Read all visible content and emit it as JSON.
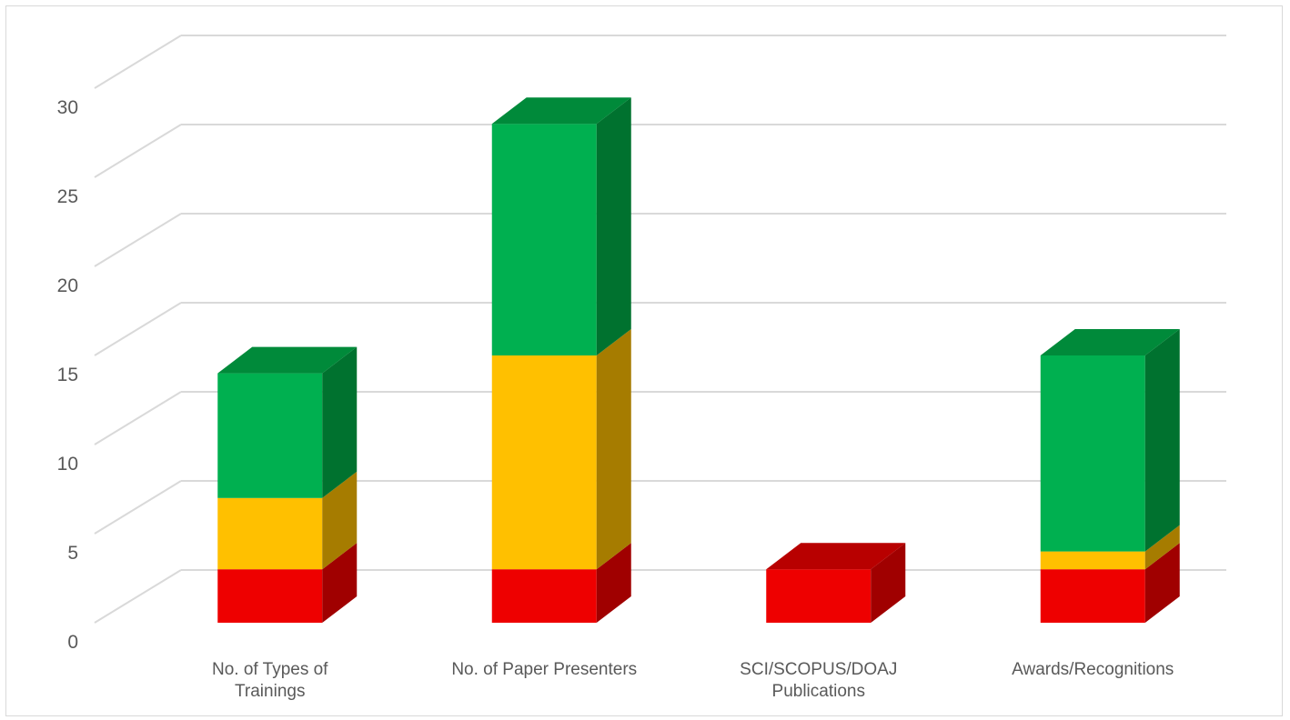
{
  "chart_data": {
    "type": "bar",
    "stacked": true,
    "three_d": true,
    "title": "",
    "xlabel": "",
    "ylabel": "",
    "ylim": [
      0,
      30
    ],
    "y_ticks": [
      "0",
      "5",
      "10",
      "15",
      "20",
      "25",
      "30"
    ],
    "grid": true,
    "legend": "none",
    "categories": [
      [
        "No. of Types of",
        "Trainings"
      ],
      [
        "No. of Paper Presenters"
      ],
      [
        "SCI/SCOPUS/DOAJ",
        "Publications"
      ],
      [
        "Awards/Recognitions"
      ]
    ],
    "series": [
      {
        "color": "#ee0000",
        "side_color": "#a00000",
        "top_color": "#b80000",
        "values": [
          3,
          3,
          3,
          3
        ]
      },
      {
        "color": "#ffc000",
        "side_color": "#a67c00",
        "top_color": "#c79400",
        "values": [
          4,
          12,
          0,
          1
        ]
      },
      {
        "color": "#00b050",
        "side_color": "#00722f",
        "top_color": "#008a3a",
        "values": [
          7,
          13,
          0,
          11
        ]
      }
    ]
  }
}
